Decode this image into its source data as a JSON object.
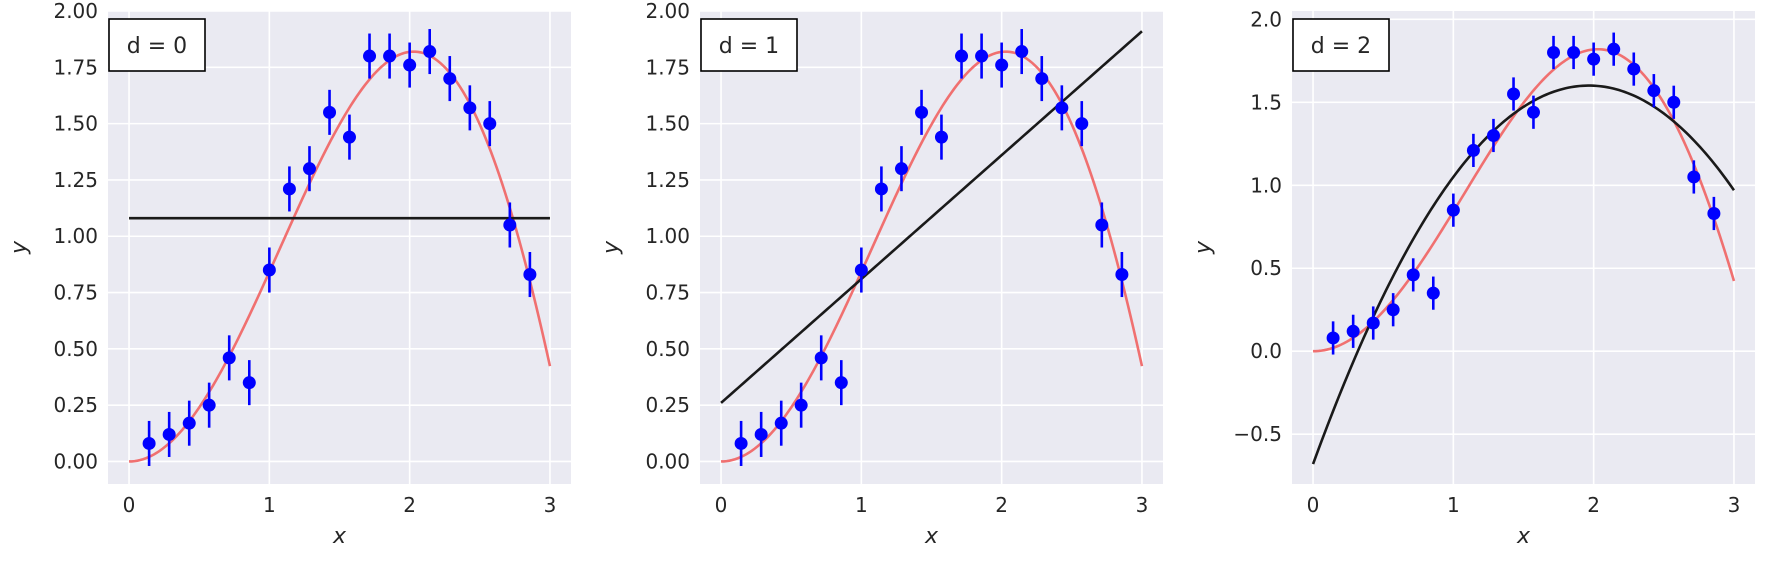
{
  "chart_data": [
    {
      "type": "scatter",
      "label": "d = 0",
      "xlabel": "x",
      "ylabel": "y",
      "xlim": [
        -0.15,
        3.15
      ],
      "ylim": [
        -0.1,
        2.0
      ],
      "xticks": [
        0,
        1,
        2,
        3
      ],
      "xtick_labels": [
        "0",
        "1",
        "2",
        "3"
      ],
      "yticks": [
        0,
        0.25,
        0.5,
        0.75,
        1.0,
        1.25,
        1.5,
        1.75,
        2.0
      ],
      "ytick_labels": [
        "0.00",
        "0.25",
        "0.50",
        "0.75",
        "1.00",
        "1.25",
        "1.50",
        "1.75",
        "2.00"
      ],
      "grid": true,
      "points": {
        "x": [
          0.143,
          0.286,
          0.429,
          0.571,
          0.714,
          0.857,
          1.0,
          1.143,
          1.286,
          1.429,
          1.571,
          1.714,
          1.857,
          2.0,
          2.143,
          2.286,
          2.429,
          2.571,
          2.714,
          2.857
        ],
        "y": [
          0.08,
          0.12,
          0.17,
          0.25,
          0.46,
          0.35,
          0.85,
          1.21,
          1.3,
          1.55,
          1.44,
          1.8,
          1.8,
          1.76,
          1.82,
          1.7,
          1.57,
          1.5,
          1.05,
          0.83
        ],
        "yerr": 0.1,
        "color": "#0000ff"
      },
      "true_curve": {
        "function": "x * sin(x)",
        "x_range": [
          0,
          3
        ],
        "color": "#f07070"
      },
      "fit_curve": {
        "degree": 0,
        "coefficients": [
          1.08
        ],
        "x_range": [
          0,
          3
        ],
        "color": "#1a1a1a"
      }
    },
    {
      "type": "scatter",
      "label": "d = 1",
      "xlabel": "x",
      "ylabel": "y",
      "xlim": [
        -0.15,
        3.15
      ],
      "ylim": [
        -0.1,
        2.0
      ],
      "xticks": [
        0,
        1,
        2,
        3
      ],
      "xtick_labels": [
        "0",
        "1",
        "2",
        "3"
      ],
      "yticks": [
        0,
        0.25,
        0.5,
        0.75,
        1.0,
        1.25,
        1.5,
        1.75,
        2.0
      ],
      "ytick_labels": [
        "0.00",
        "0.25",
        "0.50",
        "0.75",
        "1.00",
        "1.25",
        "1.50",
        "1.75",
        "2.00"
      ],
      "grid": true,
      "points": {
        "x": [
          0.143,
          0.286,
          0.429,
          0.571,
          0.714,
          0.857,
          1.0,
          1.143,
          1.286,
          1.429,
          1.571,
          1.714,
          1.857,
          2.0,
          2.143,
          2.286,
          2.429,
          2.571,
          2.714,
          2.857
        ],
        "y": [
          0.08,
          0.12,
          0.17,
          0.25,
          0.46,
          0.35,
          0.85,
          1.21,
          1.3,
          1.55,
          1.44,
          1.8,
          1.8,
          1.76,
          1.82,
          1.7,
          1.57,
          1.5,
          1.05,
          0.83
        ],
        "yerr": 0.1,
        "color": "#0000ff"
      },
      "true_curve": {
        "function": "x * sin(x)",
        "x_range": [
          0,
          3
        ],
        "color": "#f07070"
      },
      "fit_curve": {
        "degree": 1,
        "coefficients": [
          0.26,
          0.55
        ],
        "x_range": [
          0,
          3
        ],
        "color": "#1a1a1a"
      }
    },
    {
      "type": "scatter",
      "label": "d = 2",
      "xlabel": "x",
      "ylabel": "y",
      "xlim": [
        -0.15,
        3.15
      ],
      "ylim": [
        -0.8,
        2.05
      ],
      "xticks": [
        0,
        1,
        2,
        3
      ],
      "xtick_labels": [
        "0",
        "1",
        "2",
        "3"
      ],
      "yticks": [
        -0.5,
        0,
        0.5,
        1.0,
        1.5,
        2.0
      ],
      "ytick_labels": [
        "−0.5",
        "0.0",
        "0.5",
        "1.0",
        "1.5",
        "2.0"
      ],
      "grid": true,
      "points": {
        "x": [
          0.143,
          0.286,
          0.429,
          0.571,
          0.714,
          0.857,
          1.0,
          1.143,
          1.286,
          1.429,
          1.571,
          1.714,
          1.857,
          2.0,
          2.143,
          2.286,
          2.429,
          2.571,
          2.714,
          2.857
        ],
        "y": [
          0.08,
          0.12,
          0.17,
          0.25,
          0.46,
          0.35,
          0.85,
          1.21,
          1.3,
          1.55,
          1.44,
          1.8,
          1.8,
          1.76,
          1.82,
          1.7,
          1.57,
          1.5,
          1.05,
          0.83
        ],
        "yerr": 0.1,
        "color": "#0000ff"
      },
      "true_curve": {
        "function": "x * sin(x)",
        "x_range": [
          0,
          3
        ],
        "color": "#f07070"
      },
      "fit_curve": {
        "degree": 2,
        "coefficients": [
          -0.68,
          2.32,
          -0.59
        ],
        "x_range": [
          0,
          3
        ],
        "color": "#1a1a1a"
      }
    }
  ]
}
